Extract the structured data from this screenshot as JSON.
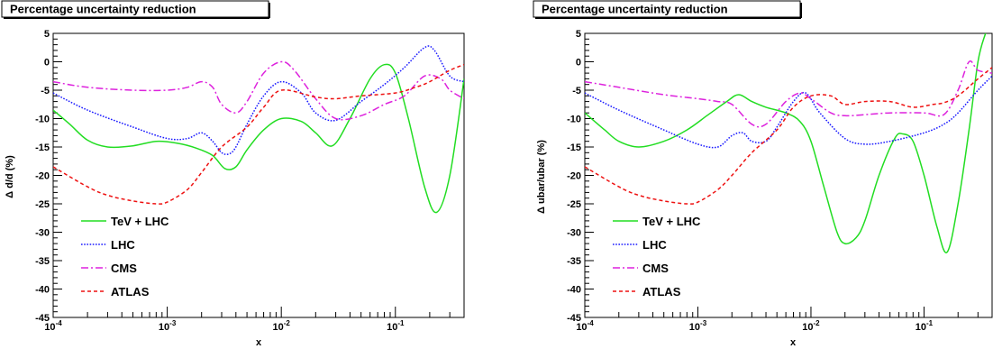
{
  "figure_title": "Percentage uncertainty reduction",
  "colors": {
    "TeV + LHC": "#22dd22",
    "LHC": "#1a1aff",
    "CMS": "#dd22dd",
    "ATLAS": "#ee1111"
  },
  "chart_data": [
    {
      "type": "line",
      "title": "Percentage uncertainty reduction",
      "xlabel": "x",
      "ylabel": "Δ d/d (%)",
      "xscale": "log",
      "xlim": [
        0.0001,
        0.4
      ],
      "ylim": [
        -45,
        5
      ],
      "xticks": [
        {
          "base": "10",
          "exp": "-4"
        },
        {
          "base": "10",
          "exp": "-3"
        },
        {
          "base": "10",
          "exp": "-2"
        },
        {
          "base": "10",
          "exp": "-1"
        }
      ],
      "yticks": [
        5,
        0,
        -5,
        -10,
        -15,
        -20,
        -25,
        -30,
        -35,
        -40,
        -45
      ],
      "legend_position": "lower-left",
      "series": [
        {
          "name": "TeV + LHC",
          "style": "solid",
          "x": [
            0.0001,
            0.00014,
            0.0002,
            0.0003,
            0.0005,
            0.0008,
            0.0012,
            0.0018,
            0.0025,
            0.0032,
            0.004,
            0.005,
            0.007,
            0.01,
            0.015,
            0.02,
            0.028,
            0.04,
            0.06,
            0.08,
            0.1,
            0.13,
            0.18,
            0.23,
            0.3,
            0.4
          ],
          "y": [
            -8.5,
            -11,
            -13.8,
            -15,
            -14.8,
            -14,
            -14.3,
            -15.2,
            -16.5,
            -18.8,
            -18.5,
            -15.5,
            -12,
            -10,
            -10.5,
            -12.5,
            -14.8,
            -10,
            -3,
            -0.5,
            -2,
            -10,
            -22,
            -26.5,
            -20,
            -3
          ]
        },
        {
          "name": "LHC",
          "style": "dotted",
          "x": [
            0.0001,
            0.0002,
            0.0005,
            0.001,
            0.0015,
            0.002,
            0.0025,
            0.003,
            0.0035,
            0.004,
            0.005,
            0.007,
            0.01,
            0.015,
            0.02,
            0.03,
            0.05,
            0.08,
            0.12,
            0.18,
            0.22,
            0.3,
            0.4
          ],
          "y": [
            -5.5,
            -8.5,
            -11.5,
            -13.5,
            -13.5,
            -12.5,
            -14,
            -16,
            -16.2,
            -15,
            -11,
            -6,
            -3.5,
            -5.5,
            -9,
            -10.3,
            -7,
            -4,
            -1,
            2.5,
            2,
            -2.5,
            -3.5
          ]
        },
        {
          "name": "CMS",
          "style": "dashdot",
          "x": [
            0.0001,
            0.0002,
            0.0005,
            0.001,
            0.0015,
            0.002,
            0.0025,
            0.003,
            0.004,
            0.005,
            0.007,
            0.01,
            0.013,
            0.02,
            0.03,
            0.05,
            0.08,
            0.12,
            0.18,
            0.25,
            0.3,
            0.4
          ],
          "y": [
            -3.5,
            -4.5,
            -5,
            -5,
            -4.5,
            -3.5,
            -4.5,
            -7.5,
            -9,
            -7,
            -2,
            0,
            -1.5,
            -6.5,
            -10,
            -9.5,
            -7.5,
            -6,
            -2.5,
            -3,
            -5,
            -6.5
          ]
        },
        {
          "name": "ATLAS",
          "style": "dashed",
          "x": [
            0.0001,
            0.0002,
            0.0003,
            0.0005,
            0.0008,
            0.001,
            0.0015,
            0.002,
            0.003,
            0.005,
            0.007,
            0.01,
            0.02,
            0.03,
            0.05,
            0.1,
            0.15,
            0.2,
            0.3,
            0.4
          ],
          "y": [
            -18.5,
            -22,
            -23.5,
            -24.5,
            -25,
            -24.7,
            -22.5,
            -19.5,
            -15,
            -11.5,
            -8,
            -5,
            -6.2,
            -6.5,
            -6,
            -5.5,
            -4.5,
            -3.5,
            -1.5,
            -0.5
          ]
        }
      ]
    },
    {
      "type": "line",
      "title": "Percentage uncertainty reduction",
      "xlabel": "x",
      "ylabel": "Δ ubar/ubar (%)",
      "xscale": "log",
      "xlim": [
        0.0001,
        0.4
      ],
      "ylim": [
        -45,
        5
      ],
      "xticks": [
        {
          "base": "10",
          "exp": "-4"
        },
        {
          "base": "10",
          "exp": "-3"
        },
        {
          "base": "10",
          "exp": "-2"
        },
        {
          "base": "10",
          "exp": "-1"
        }
      ],
      "yticks": [
        5,
        0,
        -5,
        -10,
        -15,
        -20,
        -25,
        -30,
        -35,
        -40,
        -45
      ],
      "legend_position": "lower-left",
      "series": [
        {
          "name": "TeV + LHC",
          "style": "solid",
          "x": [
            0.0001,
            0.00015,
            0.0002,
            0.0003,
            0.0005,
            0.0008,
            0.0012,
            0.0018,
            0.0023,
            0.003,
            0.004,
            0.006,
            0.008,
            0.01,
            0.013,
            0.017,
            0.02,
            0.025,
            0.03,
            0.04,
            0.055,
            0.065,
            0.08,
            0.1,
            0.13,
            0.16,
            0.2,
            0.25,
            0.3,
            0.35,
            0.4
          ],
          "y": [
            -9,
            -12,
            -14,
            -15,
            -14,
            -12,
            -9.5,
            -7,
            -5.8,
            -7,
            -8,
            -9,
            -10.5,
            -14,
            -22,
            -30,
            -32,
            -31,
            -28,
            -20,
            -13.5,
            -12.7,
            -14,
            -20,
            -29,
            -33.5,
            -25,
            -12,
            0,
            5,
            8
          ]
        },
        {
          "name": "LHC",
          "style": "dotted",
          "x": [
            0.0001,
            0.0002,
            0.0005,
            0.001,
            0.0015,
            0.002,
            0.0025,
            0.003,
            0.004,
            0.005,
            0.007,
            0.009,
            0.012,
            0.02,
            0.03,
            0.05,
            0.1,
            0.15,
            0.2,
            0.3,
            0.4
          ],
          "y": [
            -5.5,
            -8.5,
            -12,
            -14.5,
            -15,
            -13,
            -12.5,
            -14,
            -14,
            -11.5,
            -7,
            -5.5,
            -9,
            -13.5,
            -14.5,
            -14,
            -12.5,
            -11,
            -9,
            -5,
            -2.5
          ]
        },
        {
          "name": "CMS",
          "style": "dashdot",
          "x": [
            0.0001,
            0.0002,
            0.0005,
            0.001,
            0.0015,
            0.002,
            0.003,
            0.004,
            0.006,
            0.008,
            0.01,
            0.015,
            0.02,
            0.03,
            0.05,
            0.1,
            0.15,
            0.2,
            0.25,
            0.3,
            0.4
          ],
          "y": [
            -3.5,
            -4.5,
            -5.8,
            -6.5,
            -7,
            -7.5,
            -11,
            -11,
            -7,
            -5.5,
            -6.5,
            -9,
            -9.5,
            -9.3,
            -9,
            -9,
            -9.3,
            -5,
            0,
            -1.5,
            -2
          ]
        },
        {
          "name": "ATLAS",
          "style": "dashed",
          "x": [
            0.0001,
            0.0002,
            0.0003,
            0.0005,
            0.0008,
            0.001,
            0.0015,
            0.002,
            0.003,
            0.005,
            0.007,
            0.01,
            0.015,
            0.02,
            0.03,
            0.05,
            0.08,
            0.12,
            0.15,
            0.2,
            0.3,
            0.4
          ],
          "y": [
            -18.5,
            -22,
            -23.5,
            -24.5,
            -25,
            -24.7,
            -22.5,
            -20,
            -16,
            -12,
            -8,
            -6,
            -6,
            -7.5,
            -7,
            -7,
            -8,
            -7.5,
            -7.2,
            -6,
            -3,
            -1
          ]
        }
      ]
    }
  ]
}
